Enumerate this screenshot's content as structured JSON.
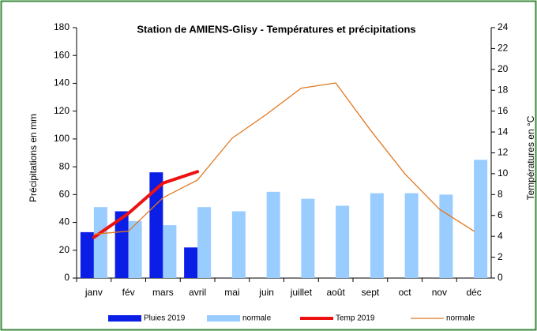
{
  "chart_data": {
    "type": "combo",
    "title": "Station de AMIENS-Glisy - Températures et précipitations",
    "ylabel": "Précipitations en mm",
    "y2label": "Températures en °C",
    "categories": [
      "janv",
      "fév",
      "mars",
      "avril",
      "mai",
      "juin",
      "juillet",
      "août",
      "sept",
      "oct",
      "nov",
      "déc"
    ],
    "series": [
      {
        "name": "Pluies 2019",
        "type": "bar",
        "color": "#0a1ee6",
        "values": [
          33,
          48,
          76,
          22,
          null,
          null,
          null,
          null,
          null,
          null,
          null,
          null
        ]
      },
      {
        "name": "normale",
        "type": "bar",
        "color": "#99ccff",
        "values": [
          51,
          41,
          38,
          51,
          48,
          62,
          57,
          52,
          61,
          61,
          60,
          85
        ]
      },
      {
        "name": "Temp 2019",
        "type": "line",
        "axis": "y2",
        "color": "#ee1111",
        "values": [
          3.9,
          6.2,
          9.1,
          10.2,
          null,
          null,
          null,
          null,
          null,
          null,
          null,
          null
        ]
      },
      {
        "name": "normale",
        "type": "line",
        "axis": "y2",
        "color": "#e07820",
        "values": [
          4.2,
          4.5,
          7.7,
          9.4,
          13.4,
          15.7,
          18.2,
          18.7,
          14.2,
          10.0,
          6.6,
          4.5
        ]
      }
    ],
    "ylim": [
      0,
      180
    ],
    "yticks": [
      0,
      20,
      40,
      60,
      80,
      100,
      120,
      140,
      160,
      180
    ],
    "y2lim": [
      0,
      24
    ],
    "y2ticks": [
      0,
      2,
      4,
      6,
      8,
      10,
      12,
      14,
      16,
      18,
      20,
      22,
      24
    ],
    "grid": false,
    "legend": "bottom"
  }
}
